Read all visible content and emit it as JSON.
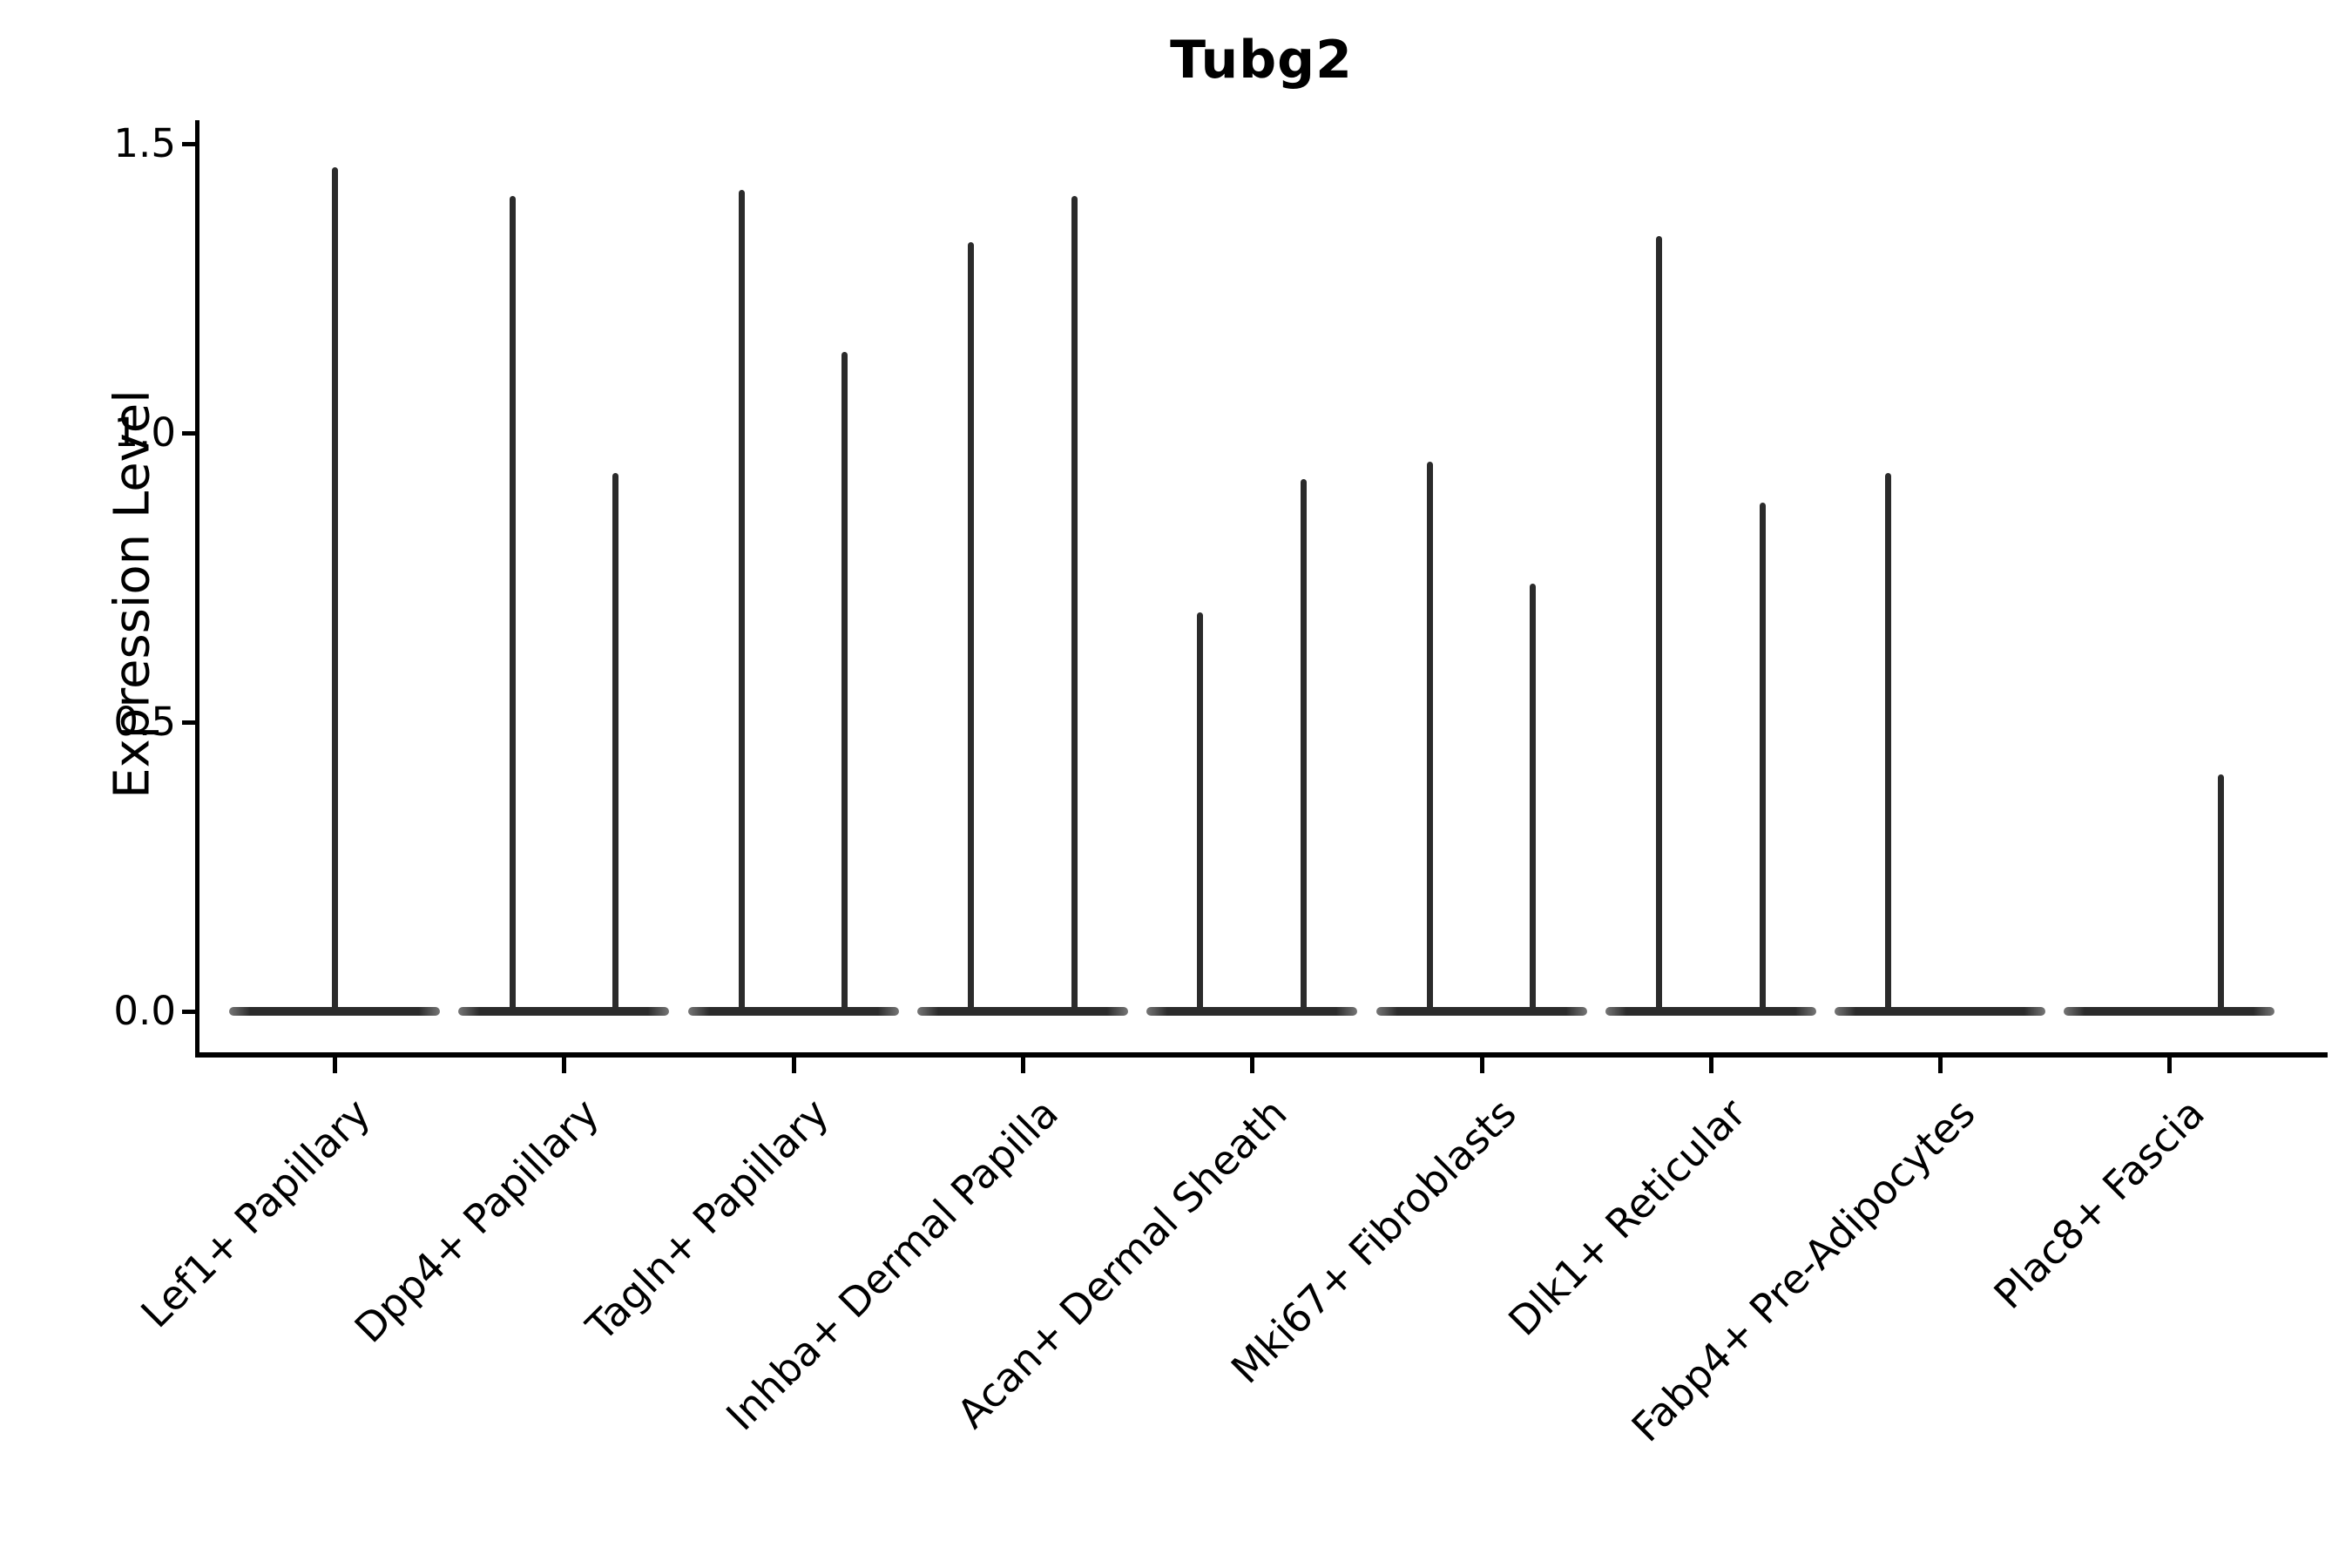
{
  "chart_data": {
    "type": "violin",
    "title": "Tubg2",
    "xlabel": "",
    "ylabel": "Expression Level",
    "ylim": [
      -0.08,
      1.58
    ],
    "ytick_labels": [
      "0.0",
      "0.5",
      "1.0",
      "1.5"
    ],
    "ytick_values": [
      0.0,
      0.5,
      1.0,
      1.5
    ],
    "grid": false,
    "legend_position": "none",
    "categories": [
      "Lef1+ Papillary",
      "Dpp4+ Papillary",
      "Tagln+ Papillary",
      "Inhba+ Dermal Papilla",
      "Acan+ Dermal Sheath",
      "Mki67+ Fibroblasts",
      "Dlk1+ Reticular",
      "Fabp4+ Pre-Adipocytes",
      "Plac8+ Fascia"
    ],
    "violins": [
      {
        "category": "Lef1+ Papillary",
        "spikes": [
          {
            "offset_frac": 0.0,
            "max_expression": 1.46
          }
        ]
      },
      {
        "category": "Dpp4+ Papillary",
        "spikes": [
          {
            "offset_frac": -0.225,
            "max_expression": 1.41
          },
          {
            "offset_frac": 0.225,
            "max_expression": 0.93
          }
        ]
      },
      {
        "category": "Tagln+ Papillary",
        "spikes": [
          {
            "offset_frac": -0.225,
            "max_expression": 1.42
          },
          {
            "offset_frac": 0.225,
            "max_expression": 1.14
          }
        ]
      },
      {
        "category": "Inhba+ Dermal Papilla",
        "spikes": [
          {
            "offset_frac": -0.225,
            "max_expression": 1.33
          },
          {
            "offset_frac": 0.225,
            "max_expression": 1.41
          }
        ]
      },
      {
        "category": "Acan+ Dermal Sheath",
        "spikes": [
          {
            "offset_frac": -0.225,
            "max_expression": 0.69
          },
          {
            "offset_frac": 0.225,
            "max_expression": 0.92
          }
        ]
      },
      {
        "category": "Mki67+ Fibroblasts",
        "spikes": [
          {
            "offset_frac": -0.225,
            "max_expression": 0.95
          },
          {
            "offset_frac": 0.225,
            "max_expression": 0.74
          }
        ]
      },
      {
        "category": "Dlk1+ Reticular",
        "spikes": [
          {
            "offset_frac": -0.225,
            "max_expression": 1.34
          },
          {
            "offset_frac": 0.225,
            "max_expression": 0.88
          }
        ]
      },
      {
        "category": "Fabp4+ Pre-Adipocytes",
        "spikes": [
          {
            "offset_frac": -0.225,
            "max_expression": 0.93
          }
        ]
      },
      {
        "category": "Plac8+ Fascia",
        "spikes": [
          {
            "offset_frac": 0.225,
            "max_expression": 0.41
          }
        ]
      }
    ],
    "baseline_value": 0.0,
    "colors": {
      "violin_fill": "#2b2b2b",
      "axis_ink": "#000000"
    }
  }
}
